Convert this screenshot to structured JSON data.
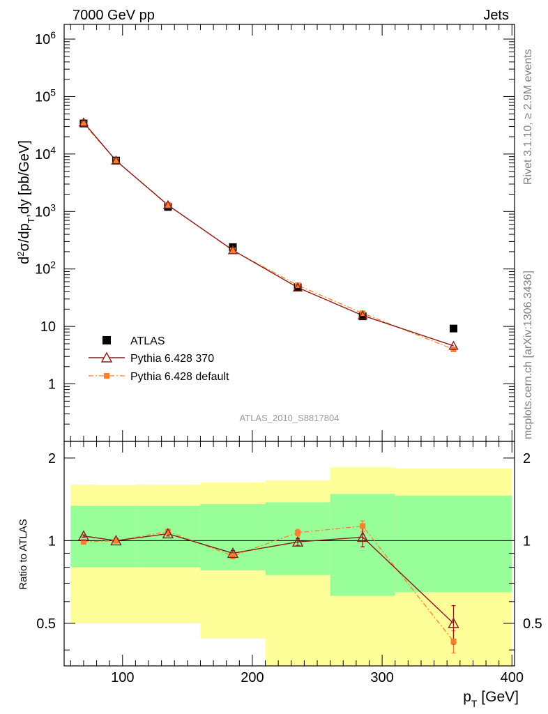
{
  "header": {
    "left": "7000 GeV pp",
    "right": "Jets"
  },
  "side_labels": {
    "rivet": "Rivet 3.1.10, ≥ 2.9M events",
    "mcplots": "mcplots.cern.ch [arXiv:1306.3436]"
  },
  "analysis_id": "ATLAS_2010_S8817804",
  "chart_data": [
    {
      "type": "scatter",
      "panel": "main",
      "ylabel": "d²σ/dpₜ,dy [pb/GeV]",
      "yscale": "log",
      "ylim": [
        0.1,
        1800000
      ],
      "xlim": [
        55,
        402
      ],
      "ytick_labels": [
        "1",
        "10",
        "10²",
        "10³",
        "10⁴",
        "10⁵",
        "10⁶"
      ],
      "ytick_values": [
        1,
        10,
        100,
        1000,
        10000,
        100000,
        1000000
      ],
      "legend": {
        "position": "bottom-left"
      },
      "series": [
        {
          "name": "ATLAS",
          "marker": "square",
          "color": "#000000",
          "x": [
            70,
            95,
            135,
            185,
            235,
            285,
            355
          ],
          "y": [
            34000,
            7700,
            1200,
            240,
            48,
            15,
            9.2
          ]
        },
        {
          "name": "Pythia 6.428 370",
          "marker": "triangle",
          "color": "#8b1a1a",
          "x": [
            70,
            95,
            135,
            185,
            235,
            285,
            355
          ],
          "y": [
            35500,
            7650,
            1290,
            212,
            47.5,
            15.5,
            4.6
          ]
        },
        {
          "name": "Pythia 6.428 default",
          "marker": "square-small",
          "color": "#ff7f2a",
          "x": [
            70,
            95,
            135,
            185,
            235,
            285,
            355
          ],
          "y": [
            33600,
            7690,
            1300,
            210,
            52,
            17,
            4.0
          ]
        }
      ]
    },
    {
      "type": "scatter",
      "panel": "ratio",
      "ylabel": "Ratio to ATLAS",
      "xlabel": "pₜ [GeV]",
      "ylim": [
        0.35,
        2.3
      ],
      "xlim": [
        55,
        402
      ],
      "xtick_labels": [
        "100",
        "200",
        "300",
        "400"
      ],
      "xtick_values": [
        100,
        200,
        300,
        400
      ],
      "ytick_labels": [
        "0.5",
        "1",
        "2"
      ],
      "ytick_values": [
        0.5,
        1,
        2
      ],
      "bands": [
        {
          "x0": 60,
          "x1": 80,
          "yellow": [
            0.5,
            1.6
          ],
          "green": [
            0.8,
            1.34
          ]
        },
        {
          "x0": 80,
          "x1": 110,
          "yellow": [
            0.5,
            1.59
          ],
          "green": [
            0.8,
            1.34
          ]
        },
        {
          "x0": 110,
          "x1": 160,
          "yellow": [
            0.5,
            1.6
          ],
          "green": [
            0.8,
            1.34
          ]
        },
        {
          "x0": 160,
          "x1": 210,
          "yellow": [
            0.44,
            1.63
          ],
          "green": [
            0.78,
            1.36
          ]
        },
        {
          "x0": 210,
          "x1": 260,
          "yellow": [
            0.35,
            1.66
          ],
          "green": [
            0.75,
            1.38
          ]
        },
        {
          "x0": 260,
          "x1": 310,
          "yellow": [
            0.35,
            1.85
          ],
          "green": [
            0.63,
            1.48
          ]
        },
        {
          "x0": 310,
          "x1": 400,
          "yellow": [
            0.35,
            1.83
          ],
          "green": [
            0.65,
            1.46
          ]
        }
      ],
      "series": [
        {
          "name": "Pythia 6.428 370",
          "color": "#8b1a1a",
          "x": [
            70,
            95,
            135,
            185,
            235,
            285,
            355
          ],
          "y": [
            1.04,
            1.0,
            1.06,
            0.9,
            0.99,
            1.03,
            0.5
          ],
          "err": [
            0.01,
            0.01,
            0.02,
            0.02,
            0.03,
            0.08,
            0.08
          ]
        },
        {
          "name": "Pythia 6.428 default",
          "color": "#ff7f2a",
          "x": [
            70,
            95,
            135,
            185,
            235,
            285,
            355
          ],
          "y": [
            0.99,
            1.0,
            1.08,
            0.88,
            1.07,
            1.13,
            0.43
          ],
          "err": [
            0.01,
            0.01,
            0.02,
            0.02,
            0.03,
            0.05,
            0.04
          ]
        }
      ]
    }
  ]
}
